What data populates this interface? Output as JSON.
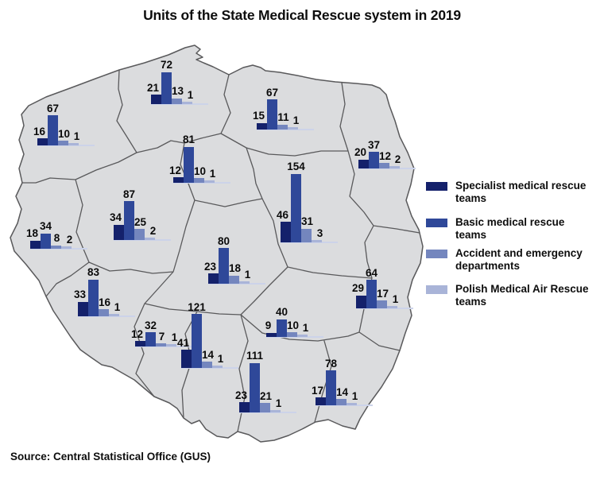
{
  "title": "Units of the State Medical Rescue system in 2019",
  "source": "Source: Central Statistical Office (GUS)",
  "legend": {
    "items": [
      {
        "label": "Specialist medical rescue teams",
        "color": "#14216b"
      },
      {
        "label": "Basic medical rescue teams",
        "color": "#2f4899"
      },
      {
        "label": "Accident and emergency departments",
        "color": "#7486be"
      },
      {
        "label": "Polish Medical Air Rescue teams",
        "color": "#a9b4d8"
      }
    ]
  },
  "map": {
    "country": "Poland",
    "fill_color": "#dbdcde",
    "border_color": "#59595b"
  },
  "chart_data": {
    "type": "bar",
    "title": "Units of the State Medical Rescue system in 2019",
    "series_names": [
      "Specialist medical rescue teams",
      "Basic medical rescue teams",
      "Accident and emergency departments",
      "Polish Medical Air Rescue teams"
    ],
    "series_colors": [
      "#14216b",
      "#2f4899",
      "#7486be",
      "#a9b4d8"
    ],
    "baseline_color": "#ccd3e9",
    "regions": [
      {
        "id": "zachodniopomorskie",
        "values": [
          16,
          67,
          10,
          1
        ]
      },
      {
        "id": "pomorskie",
        "values": [
          21,
          72,
          13,
          1
        ]
      },
      {
        "id": "warminsko-mazurskie",
        "values": [
          15,
          67,
          11,
          1
        ]
      },
      {
        "id": "podlaskie",
        "values": [
          20,
          37,
          12,
          2
        ]
      },
      {
        "id": "kujawsko-pomorskie",
        "values": [
          12,
          81,
          10,
          1
        ]
      },
      {
        "id": "wielkopolskie",
        "values": [
          34,
          87,
          25,
          2
        ]
      },
      {
        "id": "lubuskie",
        "values": [
          18,
          34,
          8,
          2
        ]
      },
      {
        "id": "lodzkie",
        "values": [
          23,
          80,
          18,
          1
        ]
      },
      {
        "id": "mazowieckie",
        "values": [
          46,
          154,
          31,
          3
        ]
      },
      {
        "id": "dolnoslaskie",
        "values": [
          33,
          83,
          16,
          1
        ]
      },
      {
        "id": "opolskie",
        "values": [
          12,
          32,
          7,
          1
        ]
      },
      {
        "id": "slaskie",
        "values": [
          41,
          121,
          14,
          1
        ]
      },
      {
        "id": "swietokrzyskie",
        "values": [
          9,
          40,
          10,
          1
        ]
      },
      {
        "id": "lubelskie",
        "values": [
          29,
          64,
          17,
          1
        ]
      },
      {
        "id": "malopolskie",
        "values": [
          23,
          111,
          21,
          1
        ]
      },
      {
        "id": "podkarpackie",
        "values": [
          17,
          78,
          14,
          1
        ]
      }
    ]
  }
}
